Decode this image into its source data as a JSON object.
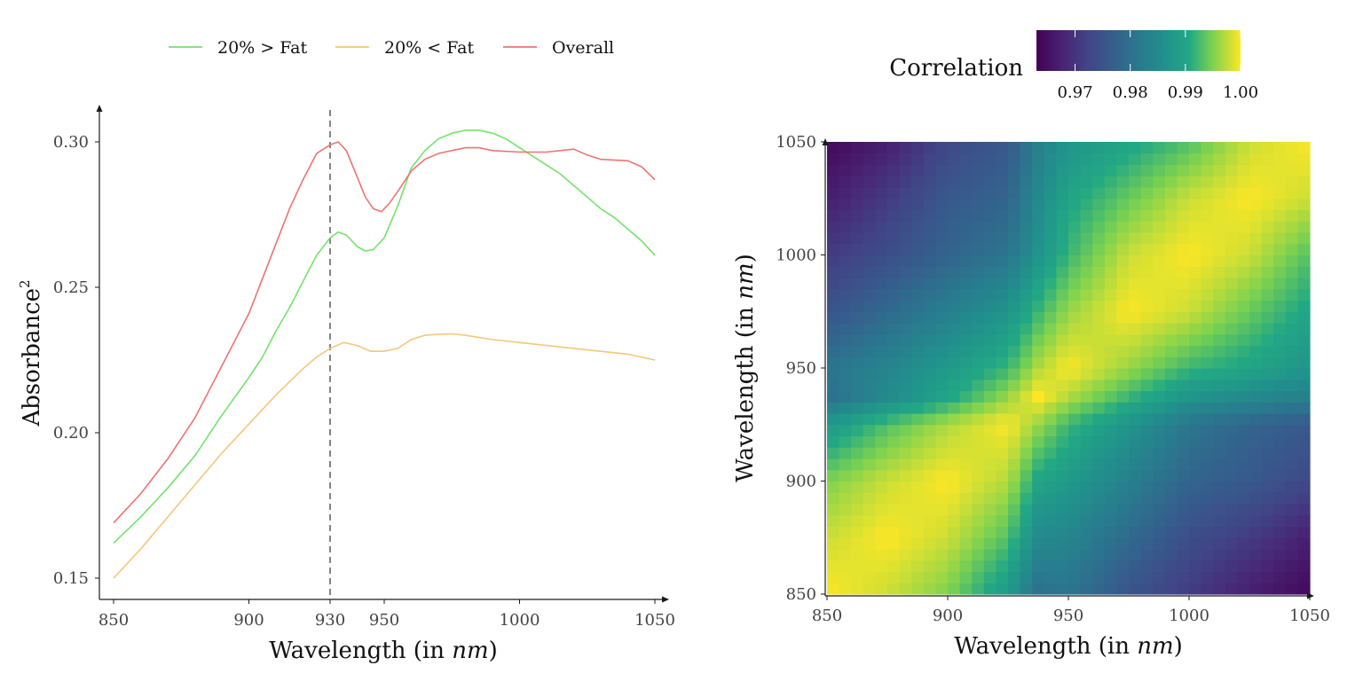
{
  "chart_data": [
    {
      "type": "line",
      "xlabel": "Wavelength (in nm)",
      "ylabel": "Absorbance",
      "ylabel_superscript": "2",
      "xlim": [
        850,
        1050
      ],
      "ylim": [
        0.143,
        0.312
      ],
      "x_ticks": [
        850,
        900,
        930,
        950,
        1000,
        1050
      ],
      "y_ticks": [
        0.15,
        0.2,
        0.25,
        0.3
      ],
      "y_tick_labels": [
        "0.15",
        "0.20",
        "0.25",
        "0.30"
      ],
      "legend_position": "top",
      "reference_line": {
        "x": 930,
        "style": "dashed",
        "color": "#666666"
      },
      "series": [
        {
          "name": "20% > Fat",
          "color": "#73e36c",
          "points": [
            [
              850,
              0.162
            ],
            [
              860,
              0.171
            ],
            [
              870,
              0.181
            ],
            [
              880,
              0.192
            ],
            [
              890,
              0.206
            ],
            [
              900,
              0.219
            ],
            [
              905,
              0.226
            ],
            [
              910,
              0.235
            ],
            [
              915,
              0.243
            ],
            [
              920,
              0.252
            ],
            [
              925,
              0.261
            ],
            [
              930,
              0.267
            ],
            [
              933,
              0.269
            ],
            [
              936,
              0.268
            ],
            [
              940,
              0.264
            ],
            [
              943,
              0.2625
            ],
            [
              946,
              0.263
            ],
            [
              950,
              0.267
            ],
            [
              955,
              0.278
            ],
            [
              960,
              0.291
            ],
            [
              965,
              0.297
            ],
            [
              970,
              0.301
            ],
            [
              975,
              0.303
            ],
            [
              980,
              0.304
            ],
            [
              985,
              0.304
            ],
            [
              990,
              0.303
            ],
            [
              995,
              0.301
            ],
            [
              1000,
              0.298
            ],
            [
              1005,
              0.295
            ],
            [
              1010,
              0.292
            ],
            [
              1015,
              0.289
            ],
            [
              1020,
              0.285
            ],
            [
              1025,
              0.281
            ],
            [
              1030,
              0.277
            ],
            [
              1035,
              0.274
            ],
            [
              1040,
              0.27
            ],
            [
              1045,
              0.266
            ],
            [
              1050,
              0.261
            ]
          ]
        },
        {
          "name": "20% < Fat",
          "color": "#f4c77a",
          "points": [
            [
              850,
              0.15
            ],
            [
              860,
              0.16
            ],
            [
              870,
              0.171
            ],
            [
              880,
              0.182
            ],
            [
              890,
              0.193
            ],
            [
              900,
              0.203
            ],
            [
              910,
              0.213
            ],
            [
              920,
              0.222
            ],
            [
              925,
              0.226
            ],
            [
              930,
              0.229
            ],
            [
              935,
              0.231
            ],
            [
              940,
              0.23
            ],
            [
              945,
              0.228
            ],
            [
              950,
              0.228
            ],
            [
              955,
              0.229
            ],
            [
              960,
              0.232
            ],
            [
              965,
              0.2335
            ],
            [
              970,
              0.2338
            ],
            [
              975,
              0.234
            ],
            [
              980,
              0.2335
            ],
            [
              990,
              0.232
            ],
            [
              1000,
              0.231
            ],
            [
              1010,
              0.23
            ],
            [
              1020,
              0.229
            ],
            [
              1030,
              0.228
            ],
            [
              1040,
              0.227
            ],
            [
              1050,
              0.225
            ]
          ]
        },
        {
          "name": "Overall",
          "color": "#ef7272",
          "points": [
            [
              850,
              0.169
            ],
            [
              860,
              0.179
            ],
            [
              870,
              0.191
            ],
            [
              880,
              0.205
            ],
            [
              890,
              0.223
            ],
            [
              900,
              0.241
            ],
            [
              905,
              0.253
            ],
            [
              910,
              0.265
            ],
            [
              915,
              0.277
            ],
            [
              920,
              0.287
            ],
            [
              925,
              0.296
            ],
            [
              930,
              0.299
            ],
            [
              933,
              0.3
            ],
            [
              936,
              0.297
            ],
            [
              940,
              0.288
            ],
            [
              943,
              0.281
            ],
            [
              946,
              0.277
            ],
            [
              949,
              0.276
            ],
            [
              952,
              0.279
            ],
            [
              955,
              0.283
            ],
            [
              960,
              0.29
            ],
            [
              965,
              0.294
            ],
            [
              970,
              0.296
            ],
            [
              975,
              0.297
            ],
            [
              980,
              0.298
            ],
            [
              985,
              0.298
            ],
            [
              990,
              0.297
            ],
            [
              1000,
              0.2965
            ],
            [
              1010,
              0.2965
            ],
            [
              1020,
              0.2975
            ],
            [
              1025,
              0.2955
            ],
            [
              1030,
              0.294
            ],
            [
              1040,
              0.2935
            ],
            [
              1045,
              0.2915
            ],
            [
              1050,
              0.287
            ]
          ]
        }
      ]
    },
    {
      "type": "heatmap",
      "xlabel": "Wavelength (in nm)",
      "ylabel": "Wavelength (in nm)",
      "xlim": [
        850,
        1050
      ],
      "ylim": [
        850,
        1050
      ],
      "x_ticks": [
        850,
        900,
        950,
        1000,
        1050
      ],
      "y_ticks": [
        850,
        900,
        950,
        1000,
        1050
      ],
      "colorscale": "viridis",
      "colorbar_title": "Correlation",
      "colorbar_range": [
        0.963,
        1.0
      ],
      "colorbar_ticks": [
        0.97,
        0.98,
        0.99,
        1.0
      ],
      "colorbar_tick_labels": [
        "0.97",
        "0.98",
        "0.99",
        "1.00"
      ],
      "grid_axis": [
        850,
        875,
        900,
        925,
        937.5,
        950,
        975,
        1000,
        1025,
        1050
      ],
      "values": [
        [
          1.0,
          0.998,
          0.995,
          0.988,
          0.98,
          0.981,
          0.975,
          0.971,
          0.967,
          0.964
        ],
        [
          0.998,
          1.0,
          0.998,
          0.993,
          0.985,
          0.984,
          0.979,
          0.974,
          0.971,
          0.967
        ],
        [
          0.995,
          0.998,
          1.0,
          0.997,
          0.99,
          0.988,
          0.983,
          0.978,
          0.976,
          0.973
        ],
        [
          0.988,
          0.993,
          0.997,
          1.0,
          0.996,
          0.992,
          0.987,
          0.981,
          0.978,
          0.976
        ],
        [
          0.98,
          0.985,
          0.99,
          0.996,
          1.0,
          0.997,
          0.992,
          0.987,
          0.985,
          0.983
        ],
        [
          0.981,
          0.984,
          0.988,
          0.992,
          0.997,
          1.0,
          0.996,
          0.992,
          0.99,
          0.987
        ],
        [
          0.975,
          0.979,
          0.983,
          0.987,
          0.992,
          0.996,
          1.0,
          0.998,
          0.994,
          0.99
        ],
        [
          0.971,
          0.974,
          0.978,
          0.981,
          0.987,
          0.992,
          0.998,
          1.0,
          0.998,
          0.993
        ],
        [
          0.967,
          0.971,
          0.976,
          0.978,
          0.985,
          0.99,
          0.994,
          0.998,
          1.0,
          0.998
        ],
        [
          0.964,
          0.967,
          0.973,
          0.976,
          0.983,
          0.987,
          0.99,
          0.993,
          0.998,
          1.0
        ]
      ]
    }
  ]
}
